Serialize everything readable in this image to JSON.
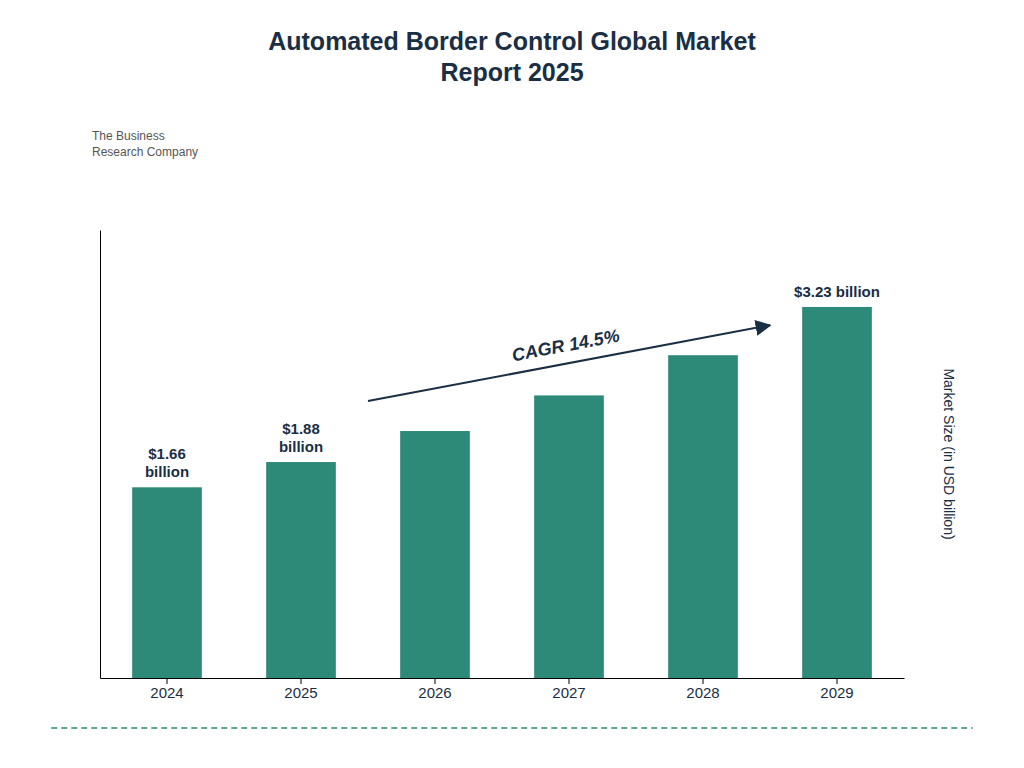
{
  "chart_data": {
    "type": "bar",
    "title": "Automated Border Control Global Market\nReport 2025",
    "categories": [
      "2024",
      "2025",
      "2026",
      "2027",
      "2028",
      "2029"
    ],
    "values": [
      1.66,
      1.88,
      2.15,
      2.46,
      2.81,
      3.23
    ],
    "color": "#2d8a78",
    "ylabel": "Market Size (in USD billion)",
    "ylim": [
      0,
      3.9
    ],
    "tick_labels": "x",
    "data_labels": true,
    "value_labels": [
      "$1.66\nbillion",
      "$1.88\nbillion",
      null,
      null,
      null,
      "$3.23 billion"
    ],
    "annotations": [
      "CAGR 14.5%",
      "The Business\nResearch Company"
    ]
  }
}
